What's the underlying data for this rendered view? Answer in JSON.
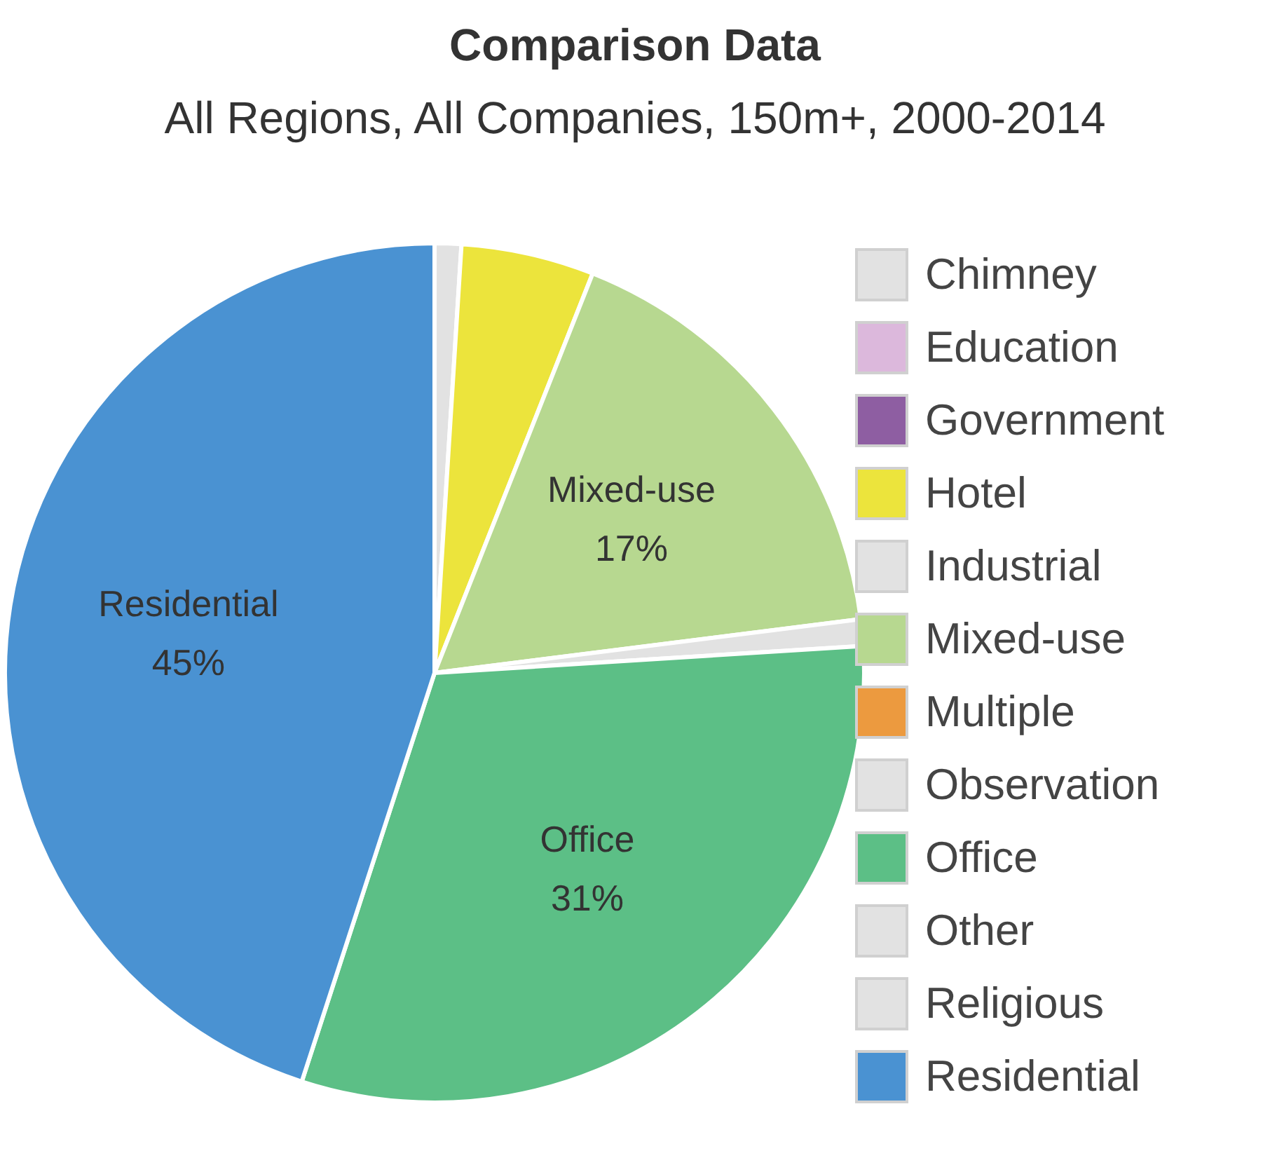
{
  "chart_data": {
    "type": "pie",
    "title": "Comparison Data",
    "subtitle": "All Regions, All Companies, 150m+, 2000-2014",
    "categories": [
      "Chimney",
      "Education",
      "Government",
      "Hotel",
      "Industrial",
      "Mixed-use",
      "Multiple",
      "Observation",
      "Office",
      "Other",
      "Religious",
      "Residential"
    ],
    "values": [
      1,
      0,
      0,
      5,
      0,
      17,
      0,
      1,
      31,
      0,
      0,
      45
    ],
    "colors": [
      "#e2e2e2",
      "#dcb8dc",
      "#8e5ea2",
      "#ece43c",
      "#e2e2e2",
      "#b7d890",
      "#ec9a3f",
      "#e2e2e2",
      "#5cbf86",
      "#e2e2e2",
      "#e2e2e2",
      "#4a92d2"
    ],
    "value_labels": [
      null,
      null,
      null,
      null,
      null,
      "17%",
      null,
      null,
      "31%",
      null,
      null,
      "45%"
    ],
    "legend": "right"
  }
}
